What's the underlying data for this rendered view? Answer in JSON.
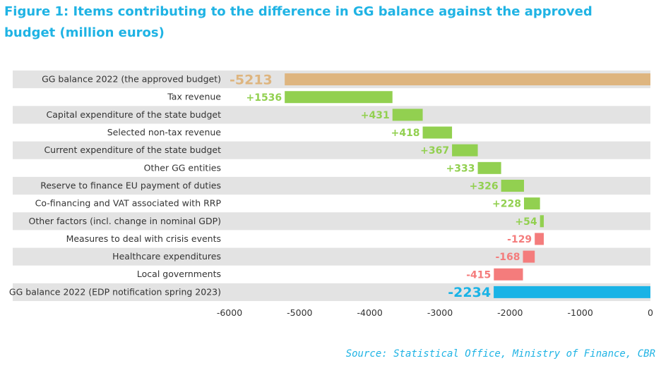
{
  "title": "Figure 1: Items contributing to the difference in GG balance against the approved budget (million euros)",
  "source": "Source: Statistical Office, Ministry of Finance, CBR",
  "colors": {
    "start_total": "#deb57f",
    "end_total": "#1ab3e6",
    "positive": "#92d050",
    "negative": "#f47c7c",
    "band": "#e3e3e3",
    "title": "#1fb3e4"
  },
  "chart_data": {
    "type": "bar",
    "subtype": "waterfall-horizontal",
    "categories": [
      "GG balance 2022 (the approved budget)",
      "Tax revenue",
      "Capital expenditure of the state budget",
      "Selected non-tax revenue",
      "Current expenditure of the state budget",
      "Other GG entities",
      "Reserve to finance EU payment of duties",
      "Co-financing and VAT associated with RRP",
      "Other factors (incl. change in nominal GDP)",
      "Measures to deal with crisis events",
      "Healthcare expenditures",
      "Local governments",
      "GG balance 2022 (EDP notification spring 2023)"
    ],
    "values": [
      -5213,
      1536,
      431,
      418,
      367,
      333,
      326,
      228,
      54,
      -129,
      -168,
      -415,
      -2234
    ],
    "data_labels": [
      "-5213",
      "+1536",
      "+431",
      "+418",
      "+367",
      "+333",
      "+326",
      "+228",
      "+54",
      "-129",
      "-168",
      "-415",
      "-2234"
    ],
    "kinds": [
      "total",
      "delta",
      "delta",
      "delta",
      "delta",
      "delta",
      "delta",
      "delta",
      "delta",
      "delta",
      "delta",
      "delta",
      "total"
    ],
    "xlim": [
      -6000,
      0
    ],
    "xticks": [
      "-6000",
      "-5000",
      "-4000",
      "-3000",
      "-2000",
      "-1000",
      "0"
    ],
    "xtick_values": [
      -6000,
      -5000,
      -4000,
      -3000,
      -2000,
      -1000,
      0
    ],
    "grid": false,
    "alternating_bands": true,
    "legend": "none"
  }
}
